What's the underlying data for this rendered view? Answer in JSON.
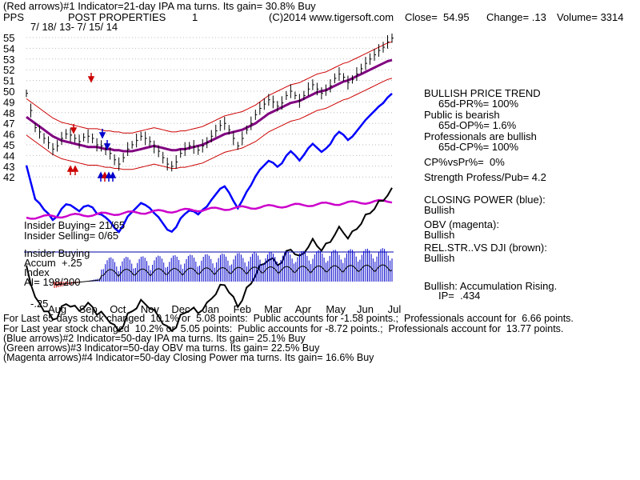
{
  "header": {
    "line1": "(Red arrows)#1 Indicator=21-day IPA ma turns. Its gain= 30.8% Buy",
    "symbol": "PPS",
    "company": "POST PROPERTIES",
    "panel_num": "1",
    "copyright": "(C)2014 www.tigersoft.com",
    "close": "Close=  54.95",
    "change": "Change= .13",
    "volume": "Volume= 3314",
    "date_range": "7/ 18/ 13- 7/ 15/ 14"
  },
  "right_panel": {
    "bullish_trend": "BULLISH PRICE TREND",
    "pr": "65d-PR%= 100%",
    "public_bearish": "Public is bearish",
    "op": "65d-OP%= 1.6%",
    "pros_bullish": "Professionals are bullish",
    "cp": "65d-CP%= 100%",
    "cpvspr": "CP%vsPr%=  0%",
    "strength": "Strength Profess/Pub= 4.2",
    "closing_power": "CLOSING POWER (blue):",
    "closing_power_val": "Bullish",
    "obv": "OBV (magenta):",
    "obv_val": "Bullish",
    "relstr": "REL.STR..VS DJI (brown):",
    "relstr_val": "Bullish",
    "accum": "Bullish: Accumulation Rising.",
    "ip": "IP=  .434"
  },
  "left_labels": {
    "insider_buying": "Insider Buying= 21/65",
    "insider_selling": "Insider Selling= 0/65",
    "insider_buying2": "Insider Buying",
    "accum": "Accum  +.25",
    "index": "Index",
    "ai": "AI= 198/200",
    "minus25": "-.25"
  },
  "footer": {
    "line1": "For Last 65 days stock changed  10.1% or  5.08 points:  Public accounts for -1.58 points.;  Professionals account for  6.66 points.",
    "line2": "For Last year stock changed  10.2% or  5.05 points:  Public accounts for -8.72 points.;  Professionals account for  13.77 points.",
    "line3": "(Blue arrows)#2 Indicator=50-day IPA ma turns. Its gain= 25.1% Buy",
    "line4": "(Green arrows)#3 Indicator=50-day OBV ma turns. Its gain= 22.5% Buy",
    "line5": "(Magenta arrows)#4 Indicator=50-day Closing Power ma turns. Its gain= 16.6% Buy"
  },
  "chart_data": {
    "type": "line",
    "price_ticks": [
      "55",
      "54",
      "53",
      "52",
      "51",
      "50",
      "49",
      "48",
      "47",
      "46",
      "45",
      "44",
      "43",
      "42"
    ],
    "months": [
      "Aug",
      "Sep",
      "Oct",
      "Nov",
      "Dec",
      "Jan",
      "Feb",
      "Mar",
      "Apr",
      "May",
      "Jun",
      "Jul"
    ],
    "ylim": [
      42,
      55
    ],
    "price_close": [
      49.8,
      48.2,
      46.6,
      46.2,
      45.6,
      45.2,
      44.6,
      44.9,
      45.6,
      46.0,
      45.9,
      45.6,
      45.3,
      45.7,
      45.8,
      45.6,
      45.0,
      44.9,
      44.6,
      44.2,
      43.6,
      43.2,
      43.8,
      44.6,
      45.0,
      45.4,
      45.8,
      45.6,
      45.3,
      44.8,
      44.4,
      43.8,
      43.2,
      43.0,
      43.4,
      44.2,
      44.6,
      44.9,
      44.8,
      44.5,
      44.9,
      45.2,
      45.8,
      46.3,
      46.8,
      47.0,
      46.4,
      45.6,
      44.9,
      45.6,
      46.4,
      47.0,
      47.8,
      48.4,
      48.8,
      49.2,
      49.0,
      48.6,
      48.9,
      49.6,
      50.0,
      49.6,
      49.1,
      49.6,
      50.2,
      50.6,
      50.2,
      49.8,
      50.1,
      50.5,
      51.2,
      51.6,
      51.3,
      50.8,
      51.1,
      51.6,
      52.1,
      52.6,
      53.0,
      53.4,
      53.8,
      54.1,
      54.6,
      54.95
    ],
    "ma50": [
      47.6,
      47.3,
      47.0,
      46.7,
      46.4,
      46.1,
      45.8,
      45.6,
      45.4,
      45.3,
      45.2,
      45.1,
      45.0,
      44.9,
      44.8,
      44.8,
      44.8,
      44.7,
      44.6,
      44.6,
      44.5,
      44.5,
      44.4,
      44.4,
      44.4,
      44.5,
      44.6,
      44.7,
      44.8,
      44.9,
      44.8,
      44.7,
      44.6,
      44.5,
      44.5,
      44.6,
      44.6,
      44.7,
      44.8,
      44.9,
      45.0,
      45.2,
      45.4,
      45.6,
      45.8,
      46.0,
      46.1,
      46.2,
      46.3,
      46.4,
      46.6,
      46.8,
      47.0,
      47.3,
      47.6,
      47.9,
      48.1,
      48.3,
      48.5,
      48.7,
      48.9,
      49.0,
      49.1,
      49.3,
      49.5,
      49.7,
      49.9,
      50.0,
      50.1,
      50.3,
      50.5,
      50.7,
      50.9,
      51.0,
      51.2,
      51.4,
      51.6,
      51.8,
      52.0,
      52.2,
      52.4,
      52.6,
      52.8,
      52.9
    ]
  }
}
